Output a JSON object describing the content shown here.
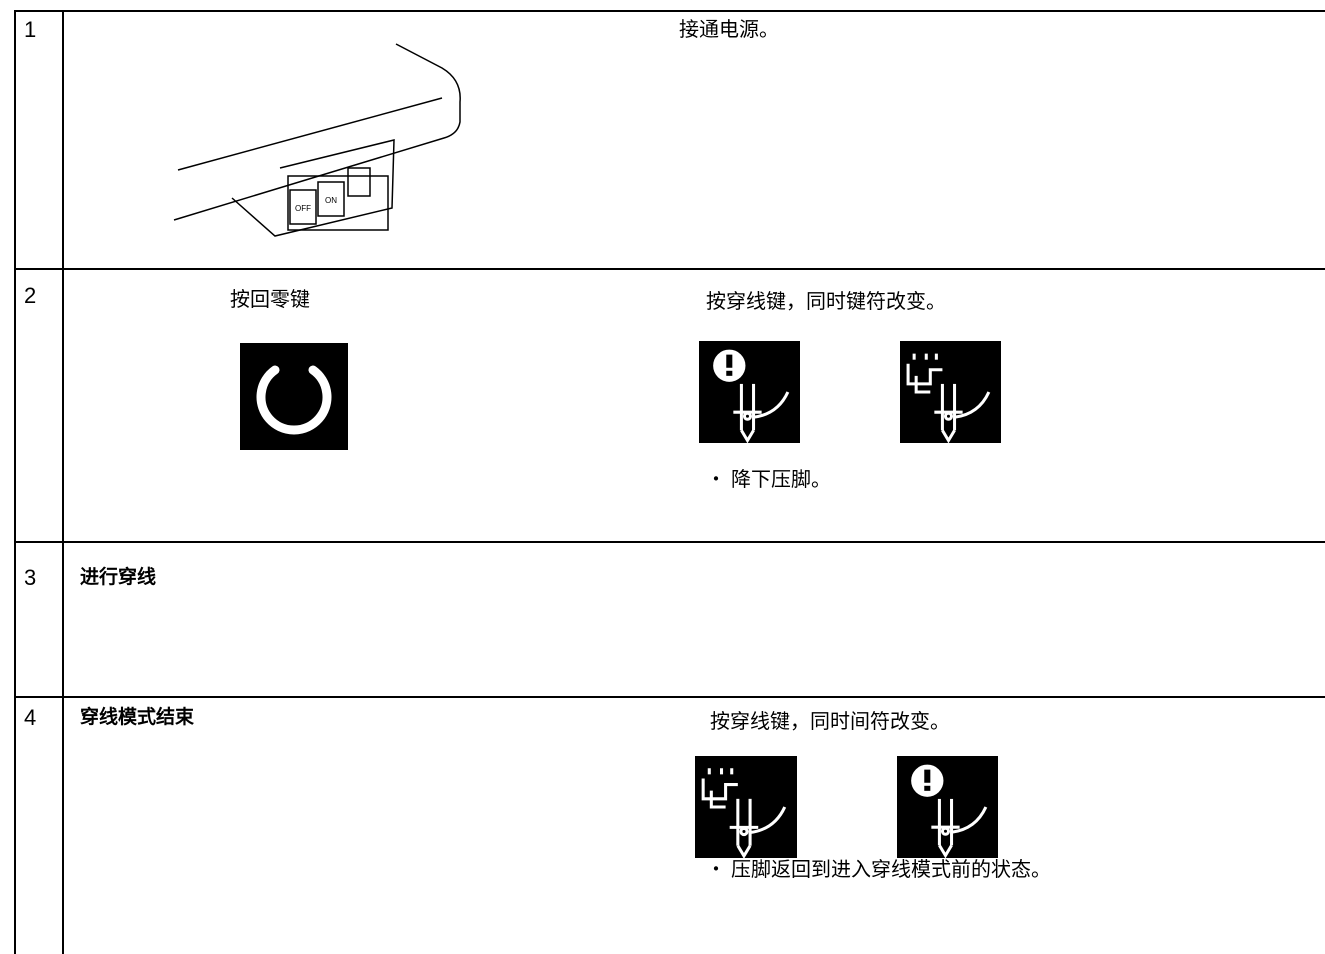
{
  "rows": [
    {
      "number": "1",
      "illustration": {
        "switch_labels": [
          "OFF",
          "ON"
        ]
      },
      "text": "接通电源。"
    },
    {
      "number": "2",
      "left_text": "按回零键",
      "text": "按穿线键，同时键符改变。",
      "note": "・ 降下压脚。"
    },
    {
      "number": "3",
      "left_text": "进行穿线"
    },
    {
      "number": "4",
      "left_text": "穿线模式结束",
      "text": "按穿线键，同时间符改变。",
      "note": "・ 压脚返回到进入穿线模式前的状态。"
    }
  ]
}
